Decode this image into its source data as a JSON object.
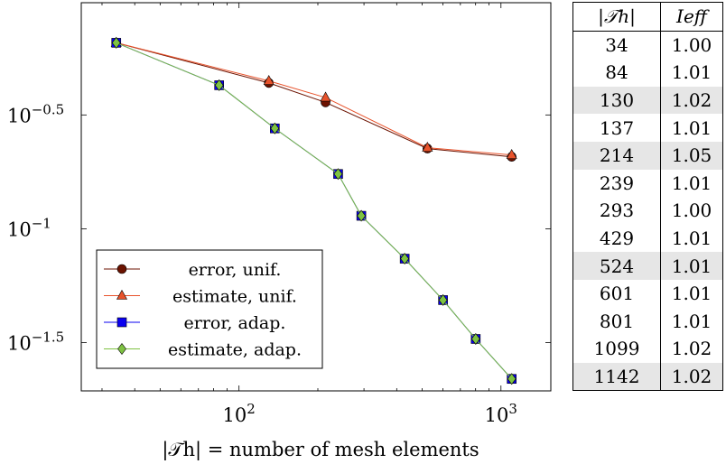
{
  "chart_data": [
    {
      "type": "line",
      "xscale": "log",
      "yscale": "log",
      "xlim": [
        25,
        1550
      ],
      "ylim": [
        0.0194,
        0.984
      ],
      "grid": false,
      "legend_position": "bottom-left",
      "xlabel": "|𝒯h| = number of mesh elements",
      "ylabel": "",
      "x_ticks": [
        {
          "value": 100,
          "label": "10",
          "exp": "2"
        },
        {
          "value": 1000,
          "label": "10",
          "exp": "3"
        }
      ],
      "y_ticks": [
        {
          "value": 0.3162,
          "label": "10",
          "exp": "−0.5"
        },
        {
          "value": 0.1,
          "label": "10",
          "exp": "−1"
        },
        {
          "value": 0.03162,
          "label": "10",
          "exp": "−1.5"
        }
      ],
      "series": [
        {
          "name": "error, unif.",
          "color": "#6b1200",
          "marker": "circle",
          "x": [
            34,
            130,
            214,
            524,
            1099
          ],
          "y": [
            0.656,
            0.437,
            0.359,
            0.225,
            0.207
          ]
        },
        {
          "name": "estimate, unif.",
          "color": "#e8532c",
          "marker": "triangle",
          "x": [
            34,
            130,
            214,
            524,
            1099
          ],
          "y": [
            0.656,
            0.446,
            0.377,
            0.227,
            0.211
          ]
        },
        {
          "name": "error, adap.",
          "color": "#0a00f0",
          "marker": "square",
          "x": [
            34,
            84,
            137,
            239,
            293,
            429,
            601,
            801,
            1099
          ],
          "y": [
            0.656,
            0.427,
            0.276,
            0.174,
            0.114,
            0.0739,
            0.0486,
            0.0328,
            0.0219
          ]
        },
        {
          "name": "estimate, adap.",
          "color": "#7ec242",
          "marker": "diamond",
          "x": [
            34,
            84,
            137,
            239,
            293,
            429,
            601,
            801,
            1099
          ],
          "y": [
            0.656,
            0.427,
            0.276,
            0.174,
            0.114,
            0.0739,
            0.0486,
            0.0328,
            0.0219
          ]
        }
      ]
    },
    {
      "type": "table",
      "headers": [
        "|𝒯h|",
        "Ieff"
      ],
      "rows": [
        [
          "34",
          "1.00"
        ],
        [
          "84",
          "1.01"
        ],
        [
          "130",
          "1.02"
        ],
        [
          "137",
          "1.01"
        ],
        [
          "214",
          "1.05"
        ],
        [
          "239",
          "1.01"
        ],
        [
          "293",
          "1.00"
        ],
        [
          "429",
          "1.01"
        ],
        [
          "524",
          "1.01"
        ],
        [
          "601",
          "1.01"
        ],
        [
          "801",
          "1.01"
        ],
        [
          "1099",
          "1.02"
        ],
        [
          "1142",
          "1.02"
        ]
      ],
      "highlighted_rows": [
        2,
        4,
        8,
        12
      ],
      "highlight_color": "#e6e6e6"
    }
  ]
}
